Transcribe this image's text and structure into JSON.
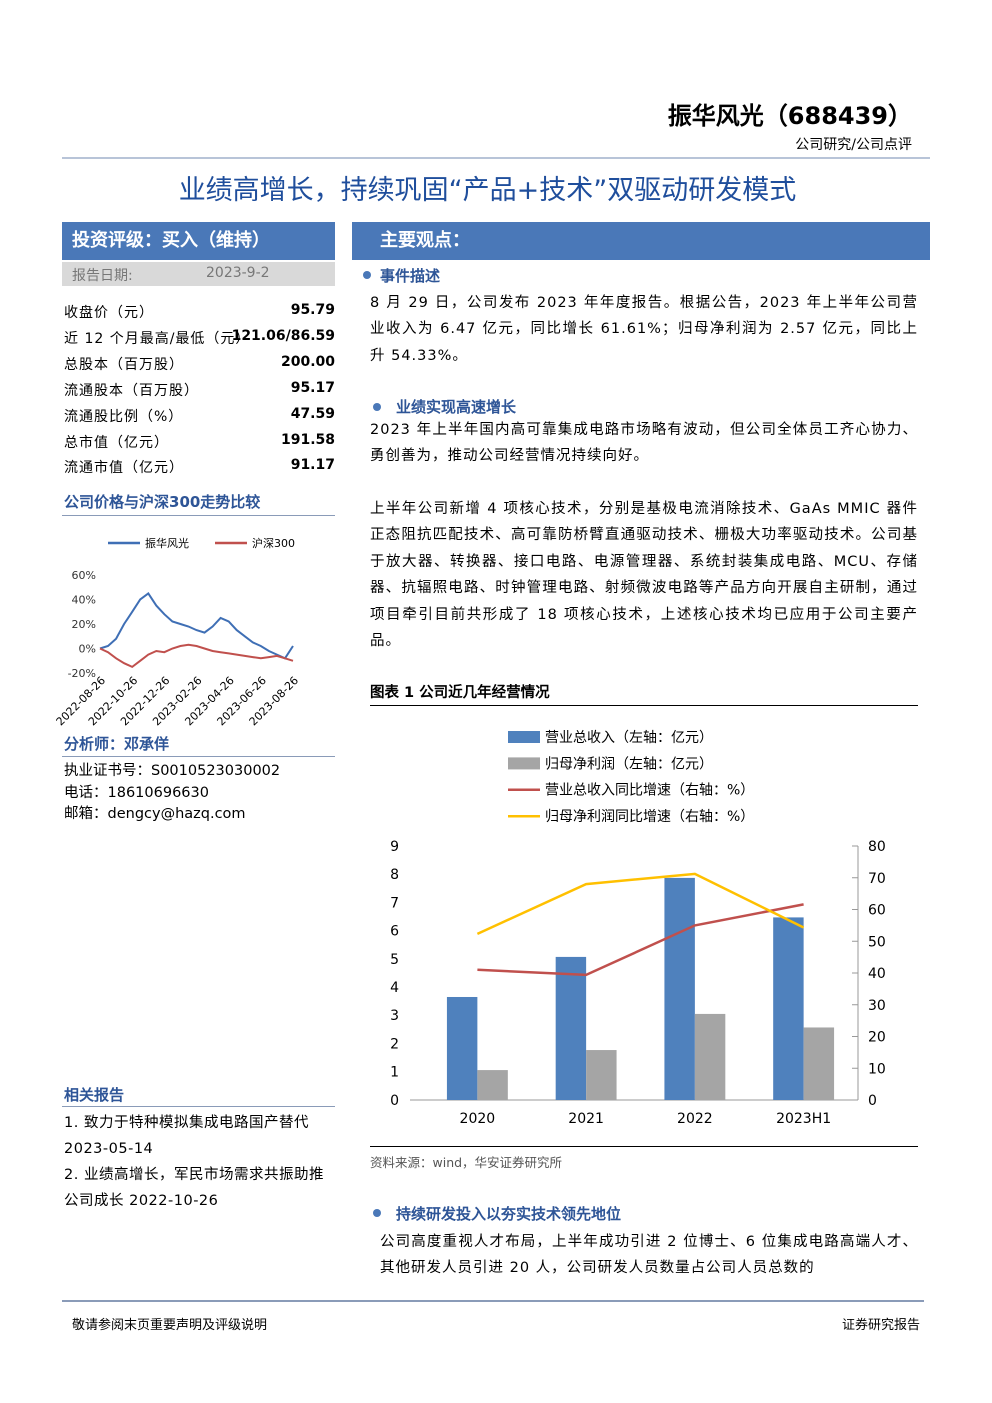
{
  "header": {
    "company": "振华风光（688439）",
    "category": "公司研究/公司点评"
  },
  "title": "业绩高增长，持续巩固“产品+技术”双驱动研发模式",
  "rating": {
    "label": "投资评级：买入（维持）",
    "date_label": "报告日期:",
    "date": "2023-9-2"
  },
  "stats": [
    {
      "label": "收盘价（元）",
      "value": "95.79"
    },
    {
      "label": "近 12 个月最高/最低（元）",
      "value": "121.06/86.59"
    },
    {
      "label": "总股本（百万股）",
      "value": "200.00"
    },
    {
      "label": "流通股本（百万股）",
      "value": "95.17"
    },
    {
      "label": "流通股比例（%）",
      "value": "47.59"
    },
    {
      "label": "总市值（亿元）",
      "value": "191.58"
    },
    {
      "label": "流通市值（亿元）",
      "value": "91.17"
    }
  ],
  "price_section": "公司价格与沪深300走势比较",
  "analyst": {
    "heading": "分析师：邓承佯",
    "license": "执业证书号：S0010523030002",
    "phone": "电话：18610696630",
    "email": "邮箱：dengcy@hazq.com"
  },
  "related": {
    "heading": "相关报告",
    "items": [
      "1. 致力于特种模拟集成电路国产替代 2023-05-14",
      "2. 业绩高增长，军民市场需求共振助推公司成长 2022-10-26"
    ]
  },
  "main_points": {
    "title": "主要观点：",
    "sections": [
      {
        "heading": "事件描述",
        "paragraphs": [
          "8 月 29 日，公司发布 2023 年年度报告。根据公告，2023 年上半年公司营业收入为 6.47 亿元，同比增长 61.61%；归母净利润为 2.57 亿元，同比上升 54.33%。"
        ]
      },
      {
        "heading": "业绩实现高速增长",
        "paragraphs": [
          "2023 年上半年国内高可靠集成电路市场略有波动，但公司全体员工齐心协力、勇创善为，推动公司经营情况持续向好。",
          "上半年公司新增 4 项核心技术，分别是基极电流消除技术、GaAs MMIC 器件正态阻抗匹配技术、高可靠防桥臂直通驱动技术、栅极大功率驱动技术。公司基于放大器、转换器、接口电路、电源管理器、系统封装集成电路、MCU、存储器、抗辐照电路、时钟管理电路、射频微波电路等产品方向开展自主研制，通过项目牵引目前共形成了 18 项核心技术，上述核心技术均已应用于公司主要产品。"
        ]
      },
      {
        "heading": "持续研发投入以夯实技术领先地位",
        "paragraphs": [
          "公司高度重视人才布局，上半年成功引进 2 位博士、6 位集成电路高端人才、其他研发人员引进 20 人，公司研发人员数量占公司人员总数的"
        ]
      }
    ]
  },
  "figure": {
    "title": "图表 1 公司近几年经营情况",
    "source": "资料来源：wind，华安证券研究所"
  },
  "footer": {
    "left": "敬请参阅末页重要声明及评级说明",
    "right": "证券研究报告"
  },
  "chart_data": [
    {
      "type": "line",
      "categories": [
        "2022-08-26",
        null,
        null,
        null,
        "2022-10-26",
        null,
        null,
        null,
        "2022-12-26",
        null,
        null,
        null,
        "2023-02-26",
        null,
        null,
        null,
        "2023-04-26",
        null,
        null,
        null,
        "2023-06-26",
        null,
        null,
        null,
        "2023-08-26"
      ],
      "series": [
        {
          "name": "振华风光",
          "color": "#3f6fb5",
          "values": [
            0,
            2,
            8,
            20,
            30,
            40,
            45,
            35,
            28,
            22,
            20,
            18,
            15,
            13,
            18,
            25,
            22,
            15,
            10,
            5,
            2,
            -2,
            -5,
            -8,
            2
          ]
        },
        {
          "name": "沪深300",
          "color": "#c0504d",
          "values": [
            0,
            -3,
            -8,
            -12,
            -15,
            -10,
            -5,
            -2,
            -3,
            0,
            2,
            3,
            2,
            0,
            -2,
            -3,
            -4,
            -5,
            -6,
            -7,
            -8,
            -7,
            -6,
            -8,
            -10
          ]
        }
      ],
      "ylim": [
        -20,
        60
      ],
      "yticks": [
        {
          "value": -20,
          "label": "-20%"
        },
        {
          "value": 0,
          "label": "0%"
        },
        {
          "value": 20,
          "label": "20%"
        },
        {
          "value": 40,
          "label": "40%"
        },
        {
          "value": 60,
          "label": "60%"
        }
      ],
      "legend": "top"
    },
    {
      "type": "combo",
      "categories": [
        "2020",
        "2021",
        "2022",
        "2023H1"
      ],
      "series": [
        {
          "name": "营业总收入（左轴：亿元）",
          "type": "bar",
          "color": "#4f81bd",
          "values": [
            3.65,
            5.07,
            7.87,
            6.47
          ]
        },
        {
          "name": "归母净利润（左轴：亿元）",
          "type": "bar",
          "color": "#a5a5a5",
          "values": [
            1.06,
            1.77,
            3.05,
            2.57
          ]
        },
        {
          "name": "营业总收入同比增速（右轴：%）",
          "type": "line",
          "axis": "y2",
          "color": "#c0504d",
          "values": [
            41,
            39.4,
            55,
            61.61
          ]
        },
        {
          "name": "归母净利润同比增速（右轴：%）",
          "type": "line",
          "axis": "y2",
          "color": "#ffc000",
          "values": [
            52.3,
            68,
            71.2,
            54.33
          ]
        }
      ],
      "ylim": [
        0,
        9
      ],
      "yticks": [
        0,
        1,
        2,
        3,
        4,
        5,
        6,
        7,
        8,
        9
      ],
      "y2lim": [
        0,
        80
      ],
      "y2ticks": [
        0,
        10,
        20,
        30,
        40,
        50,
        60,
        70,
        80
      ],
      "legend": "top"
    }
  ]
}
